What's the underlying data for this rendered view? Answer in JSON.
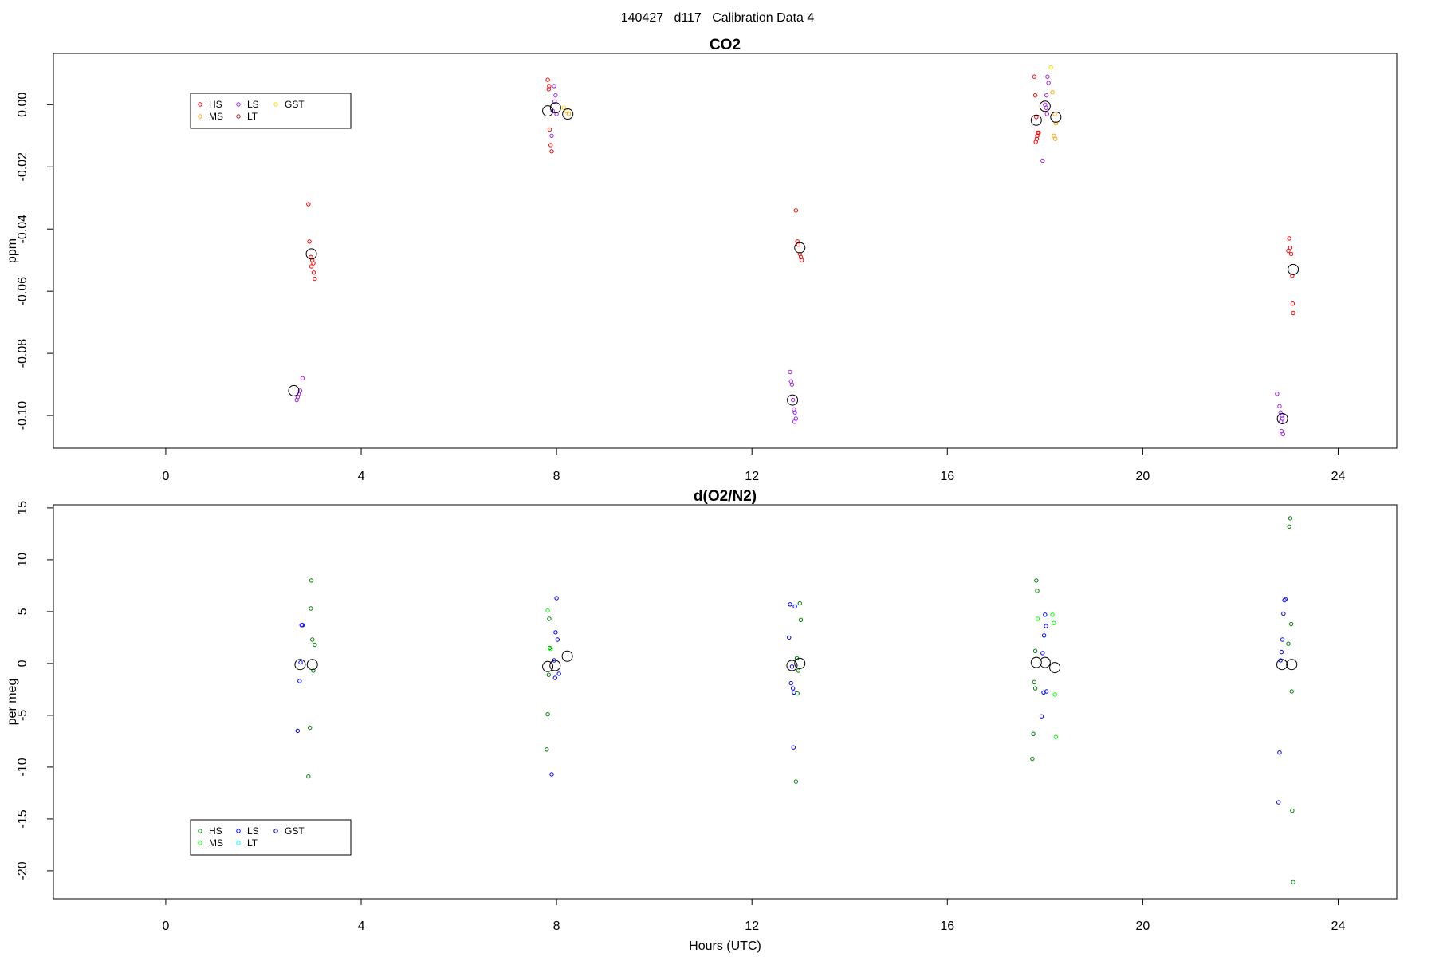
{
  "figure": {
    "title": "140427   d117   Calibration Data 4"
  },
  "chart_data": [
    {
      "type": "scatter",
      "title": "CO2",
      "xlabel": "",
      "ylabel": "ppm",
      "xlim": [
        -2.3,
        25.2
      ],
      "ylim": [
        -0.1105,
        0.0165
      ],
      "xticks": [
        0,
        4,
        8,
        12,
        16,
        20,
        24
      ],
      "yticks": [
        0.0,
        -0.02,
        -0.04,
        -0.06,
        -0.08,
        -0.1
      ],
      "ytick_labels": [
        "0.00",
        "-0.02",
        "-0.04",
        "-0.06",
        "-0.08",
        "-0.10"
      ],
      "grid": false,
      "legend": {
        "placement": "top-left",
        "entries": [
          {
            "name": "HS",
            "color": "#ff0000"
          },
          {
            "name": "MS",
            "color": "#ffa500"
          },
          {
            "name": "LS",
            "color": "#a020f0"
          },
          {
            "name": "LT",
            "color": "#b22222"
          },
          {
            "name": "GST",
            "color": "#ffd700"
          }
        ]
      },
      "series": [
        {
          "name": "HS",
          "color": "#ff0000",
          "points": [
            [
              2.92,
              -0.032
            ],
            [
              2.94,
              -0.044
            ],
            [
              2.97,
              -0.049
            ],
            [
              3.0,
              -0.05
            ],
            [
              3.02,
              -0.051
            ],
            [
              2.98,
              -0.052
            ],
            [
              3.03,
              -0.054
            ],
            [
              3.05,
              -0.056
            ],
            [
              7.82,
              0.008
            ],
            [
              7.85,
              0.006
            ],
            [
              7.84,
              0.005
            ],
            [
              7.86,
              -0.008
            ],
            [
              7.88,
              -0.013
            ],
            [
              7.9,
              -0.015
            ],
            [
              12.9,
              -0.034
            ],
            [
              12.93,
              -0.044
            ],
            [
              12.95,
              -0.045
            ],
            [
              12.98,
              -0.048
            ],
            [
              13.0,
              -0.049
            ],
            [
              13.02,
              -0.05
            ],
            [
              17.78,
              0.009
            ],
            [
              17.8,
              0.003
            ],
            [
              17.82,
              -0.004
            ],
            [
              17.85,
              -0.009
            ],
            [
              17.87,
              -0.009
            ],
            [
              17.84,
              -0.01
            ],
            [
              17.83,
              -0.011
            ],
            [
              17.81,
              -0.012
            ],
            [
              23.0,
              -0.043
            ],
            [
              23.02,
              -0.046
            ],
            [
              22.98,
              -0.047
            ],
            [
              23.04,
              -0.048
            ],
            [
              23.06,
              -0.055
            ],
            [
              23.07,
              -0.064
            ],
            [
              23.08,
              -0.067
            ]
          ]
        },
        {
          "name": "MS",
          "color": "#ffa500",
          "points": [
            [
              8.2,
              -0.002
            ],
            [
              8.25,
              -0.003
            ],
            [
              18.15,
              0.004
            ],
            [
              18.2,
              -0.003
            ],
            [
              18.22,
              -0.006
            ],
            [
              18.18,
              -0.01
            ],
            [
              18.21,
              -0.011
            ]
          ]
        },
        {
          "name": "LS",
          "color": "#a020f0",
          "points": [
            [
              2.8,
              -0.088
            ],
            [
              2.75,
              -0.092
            ],
            [
              2.72,
              -0.093
            ],
            [
              2.7,
              -0.094
            ],
            [
              2.68,
              -0.095
            ],
            [
              7.95,
              0.006
            ],
            [
              7.98,
              0.003
            ],
            [
              7.96,
              0.001
            ],
            [
              7.92,
              -0.002
            ],
            [
              8.0,
              -0.003
            ],
            [
              7.9,
              -0.01
            ],
            [
              12.78,
              -0.086
            ],
            [
              12.8,
              -0.089
            ],
            [
              12.82,
              -0.09
            ],
            [
              12.84,
              -0.095
            ],
            [
              12.86,
              -0.098
            ],
            [
              12.88,
              -0.099
            ],
            [
              12.9,
              -0.101
            ],
            [
              12.87,
              -0.102
            ],
            [
              18.05,
              0.009
            ],
            [
              18.07,
              0.007
            ],
            [
              18.03,
              0.003
            ],
            [
              18.0,
              0.0
            ],
            [
              18.02,
              -0.001
            ],
            [
              18.04,
              -0.003
            ],
            [
              17.95,
              -0.018
            ],
            [
              22.75,
              -0.093
            ],
            [
              22.8,
              -0.097
            ],
            [
              22.82,
              -0.099
            ],
            [
              22.85,
              -0.1
            ],
            [
              22.86,
              -0.101
            ],
            [
              22.83,
              -0.102
            ],
            [
              22.84,
              -0.105
            ],
            [
              22.87,
              -0.106
            ]
          ]
        },
        {
          "name": "LT",
          "color": "#b22222",
          "points": []
        },
        {
          "name": "GST",
          "color": "#ffd700",
          "points": [
            [
              18.12,
              0.012
            ],
            [
              8.15,
              -0.001
            ]
          ]
        }
      ],
      "means": [
        [
          2.62,
          -0.092
        ],
        [
          2.98,
          -0.048
        ],
        [
          7.82,
          -0.002
        ],
        [
          7.98,
          -0.001
        ],
        [
          8.23,
          -0.003
        ],
        [
          12.83,
          -0.095
        ],
        [
          12.98,
          -0.046
        ],
        [
          17.82,
          -0.005
        ],
        [
          18.0,
          -0.0005
        ],
        [
          18.22,
          -0.004
        ],
        [
          22.86,
          -0.101
        ],
        [
          23.08,
          -0.053
        ]
      ]
    },
    {
      "type": "scatter",
      "title": "d(O2/N2)",
      "xlabel": "Hours (UTC)",
      "ylabel": "per meg",
      "xlim": [
        -2.3,
        25.2
      ],
      "ylim": [
        -22.7,
        15.3
      ],
      "xticks": [
        0,
        4,
        8,
        12,
        16,
        20,
        24
      ],
      "yticks": [
        15,
        10,
        5,
        0,
        -5,
        -10,
        -15,
        -20
      ],
      "ytick_labels": [
        "15",
        "10",
        "5",
        "0",
        "-5",
        "-10",
        "-15",
        "-20"
      ],
      "grid": false,
      "legend": {
        "placement": "bottom-left",
        "entries": [
          {
            "name": "HS",
            "color": "#008000"
          },
          {
            "name": "MS",
            "color": "#00ff00"
          },
          {
            "name": "LS",
            "color": "#0000ff"
          },
          {
            "name": "LT",
            "color": "#00ffff"
          },
          {
            "name": "GST",
            "color": "#00008b"
          }
        ]
      },
      "series": [
        {
          "name": "HS",
          "color": "#008000",
          "points": [
            [
              2.98,
              8.0
            ],
            [
              2.97,
              5.3
            ],
            [
              3.0,
              2.3
            ],
            [
              3.05,
              1.8
            ],
            [
              3.02,
              -0.7
            ],
            [
              2.95,
              -6.2
            ],
            [
              2.92,
              -10.9
            ],
            [
              7.85,
              4.3
            ],
            [
              7.86,
              1.5
            ],
            [
              7.84,
              -1.1
            ],
            [
              7.82,
              -4.9
            ],
            [
              7.8,
              -8.3
            ],
            [
              12.98,
              5.8
            ],
            [
              13.0,
              4.2
            ],
            [
              12.92,
              0.5
            ],
            [
              12.95,
              -0.7
            ],
            [
              12.93,
              -2.9
            ],
            [
              12.9,
              -11.4
            ],
            [
              17.82,
              8.0
            ],
            [
              17.84,
              7.0
            ],
            [
              17.8,
              1.2
            ],
            [
              17.78,
              -1.8
            ],
            [
              17.76,
              -6.8
            ],
            [
              17.74,
              -9.2
            ],
            [
              17.8,
              -2.4
            ],
            [
              23.02,
              14.0
            ],
            [
              23.0,
              13.2
            ],
            [
              23.04,
              3.8
            ],
            [
              22.98,
              1.9
            ],
            [
              23.05,
              -2.7
            ],
            [
              23.06,
              -14.2
            ],
            [
              23.08,
              -21.1
            ]
          ]
        },
        {
          "name": "MS",
          "color": "#00ff00",
          "points": [
            [
              7.82,
              5.1
            ],
            [
              7.88,
              1.4
            ],
            [
              18.15,
              4.7
            ],
            [
              18.18,
              3.9
            ],
            [
              18.2,
              -3.0
            ],
            [
              18.22,
              -7.1
            ],
            [
              17.85,
              4.3
            ]
          ]
        },
        {
          "name": "LS",
          "color": "#0000ff",
          "points": [
            [
              2.78,
              3.7
            ],
            [
              2.8,
              3.7
            ],
            [
              2.76,
              0.1
            ],
            [
              2.74,
              -1.7
            ],
            [
              2.7,
              -6.5
            ],
            [
              8.0,
              6.3
            ],
            [
              7.98,
              3.0
            ],
            [
              8.02,
              2.3
            ],
            [
              7.95,
              0.3
            ],
            [
              8.05,
              -1.0
            ],
            [
              7.97,
              -1.4
            ],
            [
              7.9,
              -10.7
            ],
            [
              12.78,
              5.7
            ],
            [
              12.88,
              5.5
            ],
            [
              12.76,
              2.5
            ],
            [
              12.82,
              -0.3
            ],
            [
              12.8,
              -1.9
            ],
            [
              12.84,
              -2.4
            ],
            [
              12.86,
              -2.8
            ],
            [
              12.85,
              -8.1
            ],
            [
              18.0,
              4.7
            ],
            [
              18.02,
              3.6
            ],
            [
              17.98,
              2.7
            ],
            [
              17.95,
              1.0
            ],
            [
              17.97,
              -2.8
            ],
            [
              17.93,
              -5.1
            ],
            [
              18.03,
              -2.7
            ],
            [
              22.9,
              6.1
            ],
            [
              22.92,
              6.2
            ],
            [
              22.88,
              4.8
            ],
            [
              22.86,
              2.3
            ],
            [
              22.84,
              1.1
            ],
            [
              22.82,
              0.3
            ],
            [
              22.8,
              -8.6
            ],
            [
              22.78,
              -13.4
            ]
          ]
        },
        {
          "name": "LT",
          "color": "#00ffff",
          "points": []
        },
        {
          "name": "GST",
          "color": "#00008b",
          "points": []
        }
      ],
      "means": [
        [
          2.75,
          -0.1
        ],
        [
          3.0,
          -0.1
        ],
        [
          7.82,
          -0.3
        ],
        [
          7.97,
          -0.2
        ],
        [
          8.22,
          0.7
        ],
        [
          12.82,
          -0.2
        ],
        [
          12.98,
          0.0
        ],
        [
          17.82,
          0.1
        ],
        [
          18.0,
          0.1
        ],
        [
          18.2,
          -0.4
        ],
        [
          22.85,
          -0.1
        ],
        [
          23.05,
          -0.1
        ]
      ]
    }
  ]
}
